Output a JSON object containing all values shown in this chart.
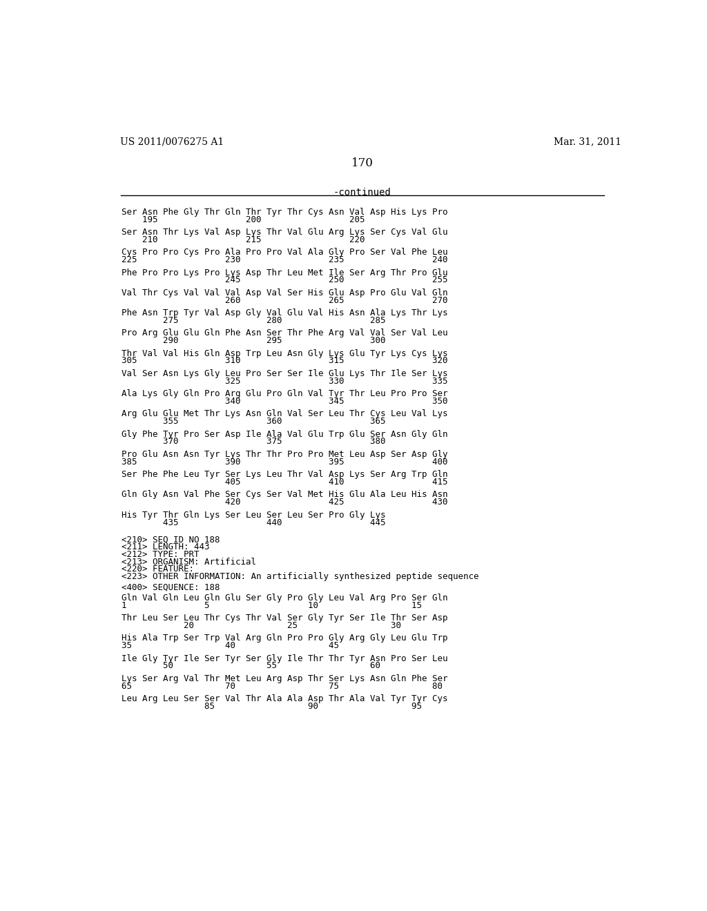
{
  "header_left": "US 2011/0076275 A1",
  "header_right": "Mar. 31, 2011",
  "page_number": "170",
  "continued_label": "-continued",
  "background_color": "#ffffff",
  "text_color": "#000000",
  "font_family": "monospace",
  "sequence_lines": [
    [
      "Ser Asn Phe Gly Thr Gln Thr Tyr Thr Cys Asn Val Asp His Lys Pro",
      "    195                 200                 205"
    ],
    [
      "Ser Asn Thr Lys Val Asp Lys Thr Val Glu Arg Lys Ser Cys Val Glu",
      "    210                 215                 220"
    ],
    [
      "Cys Pro Pro Cys Pro Ala Pro Pro Val Ala Gly Pro Ser Val Phe Leu",
      "225                 230                 235                 240"
    ],
    [
      "Phe Pro Pro Lys Pro Lys Asp Thr Leu Met Ile Ser Arg Thr Pro Glu",
      "                    245                 250                 255"
    ],
    [
      "Val Thr Cys Val Val Val Asp Val Ser His Glu Asp Pro Glu Val Gln",
      "                    260                 265                 270"
    ],
    [
      "Phe Asn Trp Tyr Val Asp Gly Val Glu Val His Asn Ala Lys Thr Lys",
      "        275                 280                 285"
    ],
    [
      "Pro Arg Glu Glu Gln Phe Asn Ser Thr Phe Arg Val Val Ser Val Leu",
      "        290                 295                 300"
    ],
    [
      "Thr Val Val His Gln Asp Trp Leu Asn Gly Lys Glu Tyr Lys Cys Lys",
      "305                 310                 315                 320"
    ],
    [
      "Val Ser Asn Lys Gly Leu Pro Ser Ser Ile Glu Lys Thr Ile Ser Lys",
      "                    325                 330                 335"
    ],
    [
      "Ala Lys Gly Gln Pro Arg Glu Pro Gln Val Tyr Thr Leu Pro Pro Ser",
      "                    340                 345                 350"
    ],
    [
      "Arg Glu Glu Met Thr Lys Asn Gln Val Ser Leu Thr Cys Leu Val Lys",
      "        355                 360                 365"
    ],
    [
      "Gly Phe Tyr Pro Ser Asp Ile Ala Val Glu Trp Glu Ser Asn Gly Gln",
      "        370                 375                 380"
    ],
    [
      "Pro Glu Asn Asn Tyr Lys Thr Thr Pro Pro Met Leu Asp Ser Asp Gly",
      "385                 390                 395                 400"
    ],
    [
      "Ser Phe Phe Leu Tyr Ser Lys Leu Thr Val Asp Lys Ser Arg Trp Gln",
      "                    405                 410                 415"
    ],
    [
      "Gln Gly Asn Val Phe Ser Cys Ser Val Met His Glu Ala Leu His Asn",
      "                    420                 425                 430"
    ],
    [
      "His Tyr Thr Gln Lys Ser Leu Ser Leu Ser Pro Gly Lys",
      "        435                 440                 445"
    ]
  ],
  "metadata_lines": [
    "<210> SEQ ID NO 188",
    "<211> LENGTH: 443",
    "<212> TYPE: PRT",
    "<213> ORGANISM: Artificial",
    "<220> FEATURE:",
    "<223> OTHER INFORMATION: An artificially synthesized peptide sequence"
  ],
  "sequence_header": "<400> SEQUENCE: 188",
  "new_sequence_lines": [
    [
      "Gln Val Gln Leu Gln Glu Ser Gly Pro Gly Leu Val Arg Pro Ser Gln",
      "1               5                   10                  15"
    ],
    [
      "Thr Leu Ser Leu Thr Cys Thr Val Ser Gly Tyr Ser Ile Thr Ser Asp",
      "            20                  25                  30"
    ],
    [
      "His Ala Trp Ser Trp Val Arg Gln Pro Pro Gly Arg Gly Leu Glu Trp",
      "35                  40                  45"
    ],
    [
      "Ile Gly Tyr Ile Ser Tyr Ser Gly Ile Thr Thr Tyr Asn Pro Ser Leu",
      "        50                  55                  60"
    ],
    [
      "Lys Ser Arg Val Thr Met Leu Arg Asp Thr Ser Lys Asn Gln Phe Ser",
      "65                  70                  75                  80"
    ],
    [
      "Leu Arg Leu Ser Ser Val Thr Ala Ala Asp Thr Ala Val Tyr Tyr Cys",
      "                85                  90                  95"
    ]
  ]
}
